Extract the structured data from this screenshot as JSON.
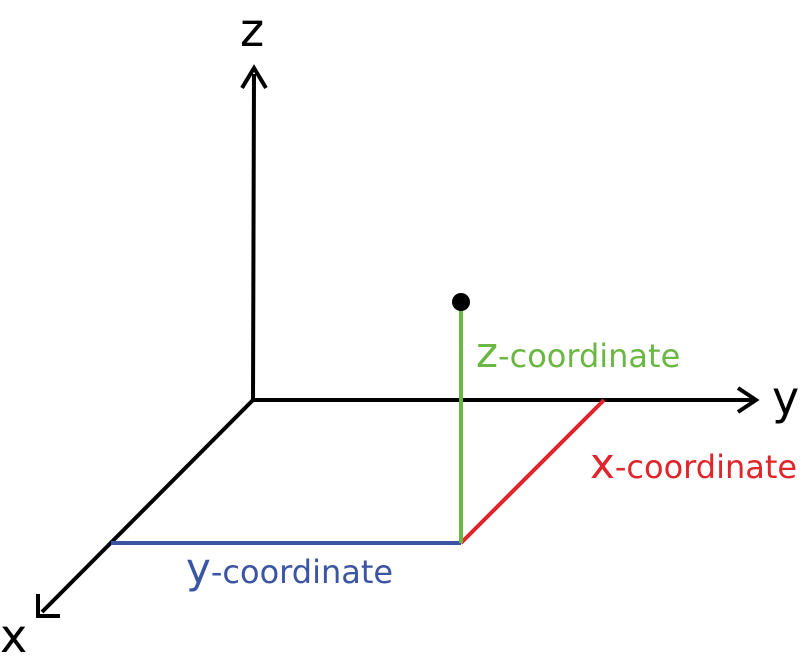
{
  "axes": {
    "z_label": "z",
    "y_label": "y",
    "x_label": "x"
  },
  "coordinates": {
    "z": {
      "letter": "z",
      "suffix": "-coordinate",
      "color": "#6ab743"
    },
    "x": {
      "letter": "x",
      "suffix": "-coordinate",
      "color": "#e0252b"
    },
    "y": {
      "letter": "y",
      "suffix": "-coordinate",
      "color": "#3b55a4"
    }
  },
  "colors": {
    "axis": "#000000",
    "point": "#000000"
  }
}
